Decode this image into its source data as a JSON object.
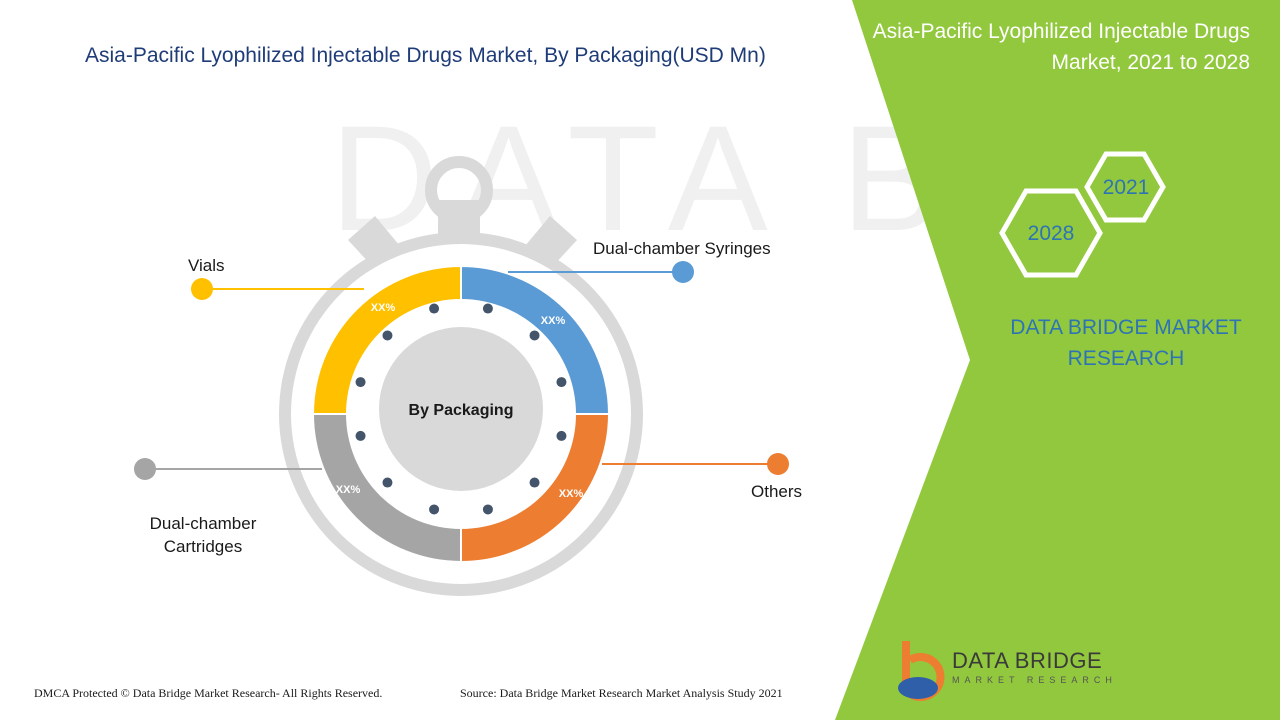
{
  "title": "Asia-Pacific Lyophilized Injectable Drugs Market, By Packaging(USD Mn)",
  "side_panel": {
    "title": "Asia-Pacific Lyophilized Injectable Drugs Market, 2021 to 2028",
    "year_start": "2021",
    "year_end": "2028",
    "brand": "DATA BRIDGE MARKET RESEARCH"
  },
  "diagram": {
    "center_label": "By Packaging",
    "segments": [
      {
        "name": "Dual-chamber Syringes",
        "value_label": "XX%",
        "color": "#5b9bd5"
      },
      {
        "name": "Others",
        "value_label": "XX%",
        "color": "#ed7d31"
      },
      {
        "name": "Dual-chamber Cartridges",
        "value_label": "XX%",
        "color": "#a5a5a5"
      },
      {
        "name": "Vials",
        "value_label": "XX%",
        "color": "#ffc000"
      }
    ]
  },
  "footer": {
    "copyright": "DMCA Protected © Data Bridge Market Research- All Rights Reserved.",
    "source": "Source: Data Bridge Market Research Market Analysis Study 2021"
  },
  "logo": {
    "name": "DATA BRIDGE",
    "tagline": "MARKET RESEARCH"
  },
  "colors": {
    "accent_green": "#92c83e",
    "title_blue": "#1f3c78",
    "brand_blue": "#2e74b5",
    "dial_gray": "#d9d9d9",
    "dot_navy": "#44546a"
  }
}
